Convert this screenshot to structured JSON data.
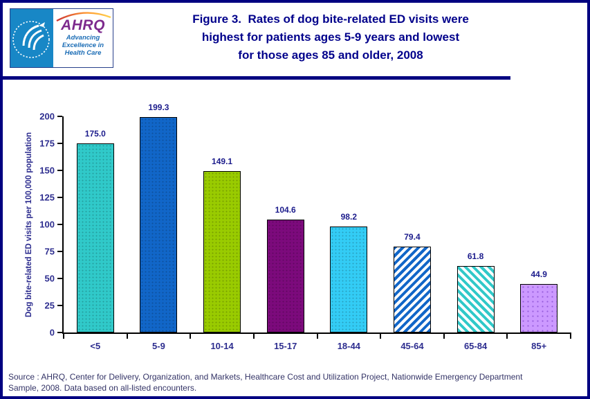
{
  "header": {
    "logo": {
      "ahrq_text": "AHRQ",
      "tagline": "Advancing\nExcellence in\nHealth Care",
      "seal_text": "DEPARTMENT OF HEALTH & HUMAN SERVICES • USA"
    },
    "title": "Figure 3.  Rates of dog bite-related ED visits were\nhighest for patients ages 5-9 years and lowest\nfor those ages 85 and older, 2008"
  },
  "chart_data": {
    "type": "bar",
    "title": "Figure 3. Rates of dog bite-related ED visits were highest for patients ages 5-9 years and lowest for those ages 85 and older, 2008",
    "categories": [
      "<5",
      "5-9",
      "10-14",
      "15-17",
      "18-44",
      "45-64",
      "65-84",
      "85+"
    ],
    "values": [
      175.0,
      199.3,
      149.1,
      104.6,
      98.2,
      79.4,
      61.8,
      44.9
    ],
    "value_labels": [
      "175.0",
      "199.3",
      "149.1",
      "104.6",
      "98.2",
      "79.4",
      "61.8",
      "44.9"
    ],
    "xlabel": "",
    "ylabel": "Dog bite-related ED visits per 100,000 population",
    "ylim": [
      0,
      200
    ],
    "yticks": [
      0,
      25,
      50,
      75,
      100,
      125,
      150,
      175,
      200
    ],
    "grid": false,
    "legend": "none",
    "bar_styles": [
      {
        "fill": "#30c9c9",
        "pattern": "dots"
      },
      {
        "fill": "#1166c8",
        "pattern": "dots"
      },
      {
        "fill": "#99cb00",
        "pattern": "dots"
      },
      {
        "fill": "#7c0a7c",
        "pattern": "dots"
      },
      {
        "fill": "#33ccf5",
        "pattern": "dots"
      },
      {
        "fill": "#ffffff",
        "pattern": "diag-up",
        "stripe": "#1166c8"
      },
      {
        "fill": "#ffffff",
        "pattern": "diag-down",
        "stripe": "#30c9c9"
      },
      {
        "fill": "#cc99ff",
        "pattern": "dots-strong"
      }
    ]
  },
  "footer": {
    "source": "Source : AHRQ, Center for Delivery, Organization, and Markets, Healthcare Cost and Utilization Project, Nationwide Emergency Department\nSample, 2008. Data based on all-listed encounters."
  },
  "colors": {
    "frame_border": "#000080",
    "title_text": "#00008b",
    "axis_text": "#2d2d8f",
    "source_text": "#333366",
    "axis_line": "#000000",
    "hhs_panel_blue": "#1887c6",
    "ahrq_purple": "#7d2a8d",
    "tagline_blue": "#1a6cb5"
  }
}
